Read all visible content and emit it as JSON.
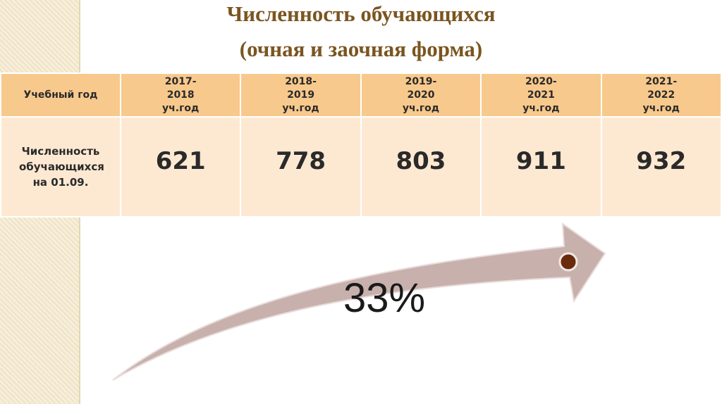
{
  "title": [
    "Численность обучающихся",
    "(очная и заочная форма)"
  ],
  "table": {
    "header": [
      "Учебный год",
      "2017-2018 уч.год",
      "2018-2019 уч.год",
      "2019-2020 уч.год",
      "2020-2021 уч.год",
      "2021-2022 уч.год"
    ],
    "rows": [
      [
        "Численность обучающихся на 01.09.",
        621,
        778,
        803,
        911,
        932
      ]
    ]
  },
  "arrow_label": "33%"
}
